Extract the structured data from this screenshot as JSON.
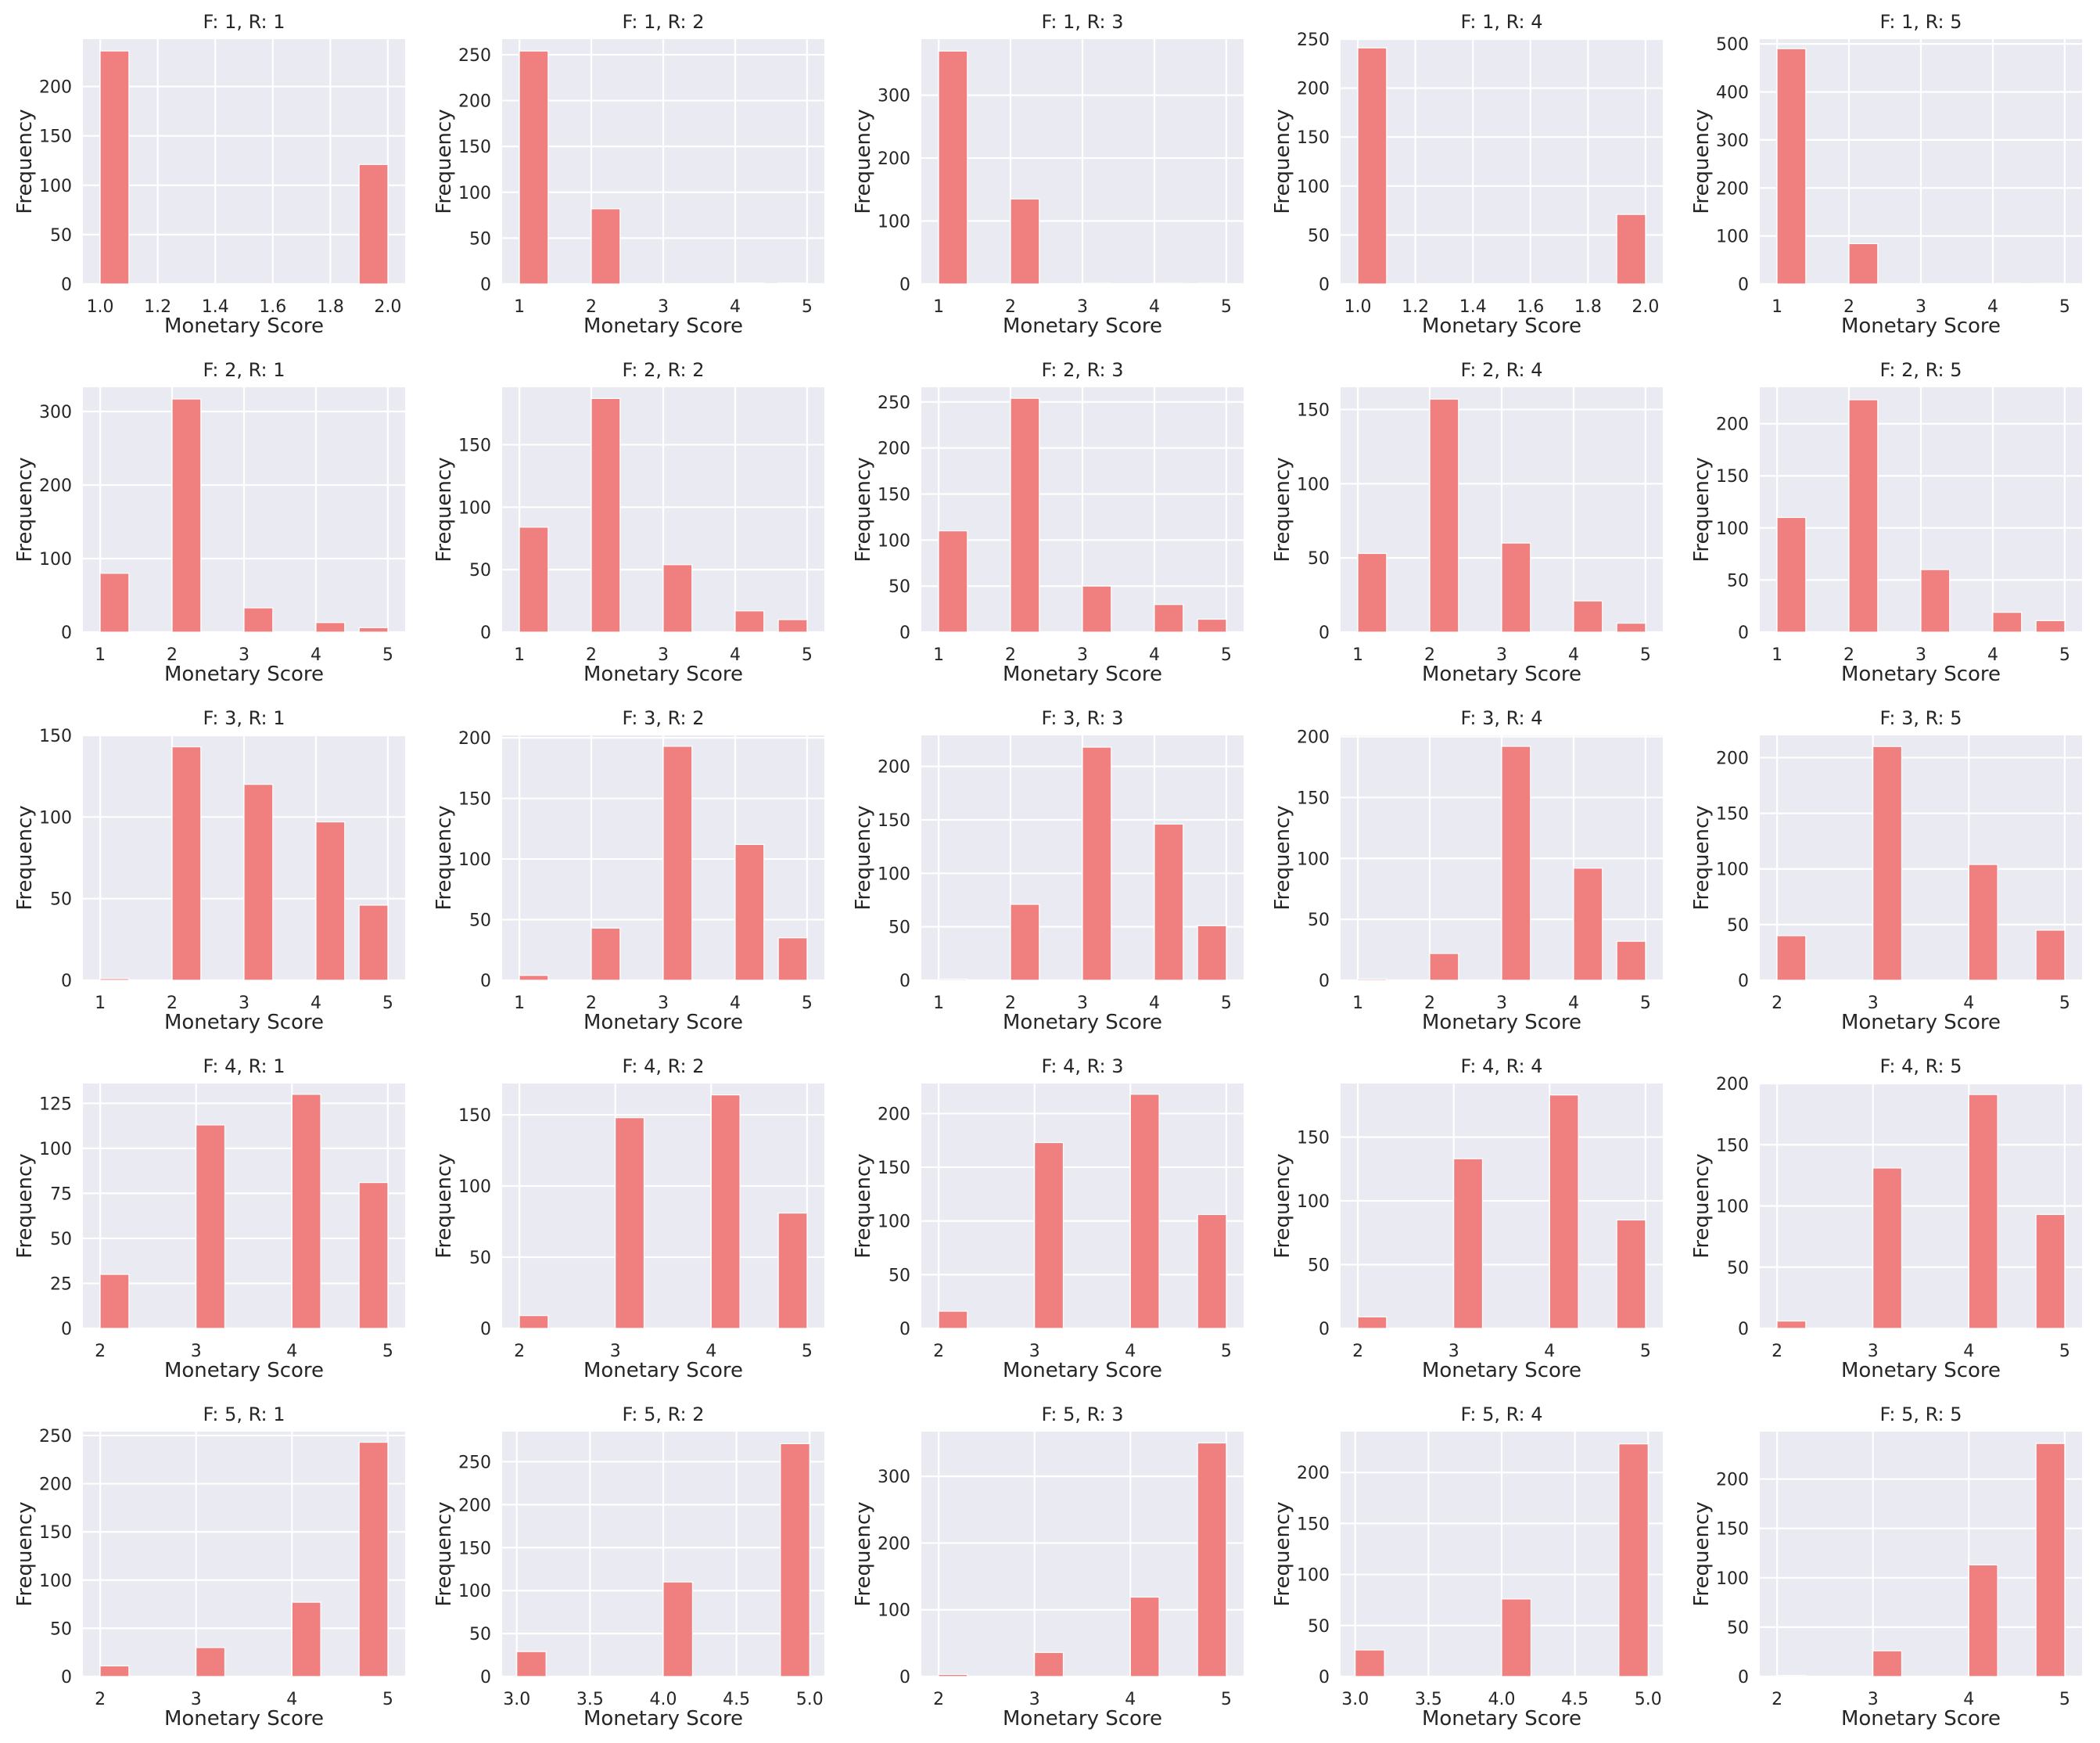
{
  "figure": {
    "rows": 5,
    "cols": 5,
    "bar_color": "#f08080",
    "background_color": "#eaeaf2",
    "grid_color": "#ffffff",
    "style": "seaborn darkgrid"
  },
  "chart_data": [
    {
      "type": "bar",
      "title": "F: 1, R: 1",
      "xlabel": "Monetary Score",
      "ylabel": "Frequency",
      "grid": true,
      "x": [
        1.0,
        2.0
      ],
      "values": [
        236,
        121
      ],
      "bin_width": 0.1,
      "xlim": [
        0.94,
        2.06
      ],
      "ylim": [
        0,
        248
      ],
      "xticks": [
        1.0,
        1.2,
        1.4,
        1.6,
        1.8,
        2.0
      ],
      "xtick_labels": [
        "1.0",
        "1.2",
        "1.4",
        "1.6",
        "1.8",
        "2.0"
      ],
      "yticks": [
        0,
        50,
        100,
        150,
        200
      ],
      "ytick_labels": [
        "0",
        "50",
        "100",
        "150",
        "200"
      ]
    },
    {
      "type": "bar",
      "title": "F: 1, R: 2",
      "xlabel": "Monetary Score",
      "ylabel": "Frequency",
      "grid": true,
      "x": [
        1,
        2,
        4,
        5
      ],
      "values": [
        254,
        82,
        1,
        1
      ],
      "bin_width": 0.4,
      "xlim": [
        0.76,
        5.24
      ],
      "ylim": [
        0,
        267
      ],
      "xticks": [
        1,
        2,
        3,
        4,
        5
      ],
      "xtick_labels": [
        "1",
        "2",
        "3",
        "4",
        "5"
      ],
      "yticks": [
        0,
        50,
        100,
        150,
        200,
        250
      ],
      "ytick_labels": [
        "0",
        "50",
        "100",
        "150",
        "200",
        "250"
      ]
    },
    {
      "type": "bar",
      "title": "F: 1, R: 3",
      "xlabel": "Monetary Score",
      "ylabel": "Frequency",
      "grid": true,
      "x": [
        1,
        2,
        3,
        4,
        5
      ],
      "values": [
        370,
        135,
        1,
        1,
        1
      ],
      "bin_width": 0.4,
      "xlim": [
        0.76,
        5.24
      ],
      "ylim": [
        0,
        389
      ],
      "xticks": [
        1,
        2,
        3,
        4,
        5
      ],
      "xtick_labels": [
        "1",
        "2",
        "3",
        "4",
        "5"
      ],
      "yticks": [
        0,
        100,
        200,
        300
      ],
      "ytick_labels": [
        "0",
        "100",
        "200",
        "300"
      ]
    },
    {
      "type": "bar",
      "title": "F: 1, R: 4",
      "xlabel": "Monetary Score",
      "ylabel": "Frequency",
      "grid": true,
      "x": [
        1.0,
        2.0
      ],
      "values": [
        241,
        71
      ],
      "bin_width": 0.1,
      "xlim": [
        0.94,
        2.06
      ],
      "ylim": [
        0,
        250
      ],
      "xticks": [
        1.0,
        1.2,
        1.4,
        1.6,
        1.8,
        2.0
      ],
      "xtick_labels": [
        "1.0",
        "1.2",
        "1.4",
        "1.6",
        "1.8",
        "2.0"
      ],
      "yticks": [
        0,
        50,
        100,
        150,
        200,
        250
      ],
      "ytick_labels": [
        "0",
        "50",
        "100",
        "150",
        "200",
        "250"
      ]
    },
    {
      "type": "bar",
      "title": "F: 1, R: 5",
      "xlabel": "Monetary Score",
      "ylabel": "Frequency",
      "grid": true,
      "x": [
        1,
        2,
        4,
        5
      ],
      "values": [
        490,
        84,
        1,
        1
      ],
      "bin_width": 0.4,
      "xlim": [
        0.76,
        5.24
      ],
      "ylim": [
        0,
        510
      ],
      "xticks": [
        1,
        2,
        3,
        4,
        5
      ],
      "xtick_labels": [
        "1",
        "2",
        "3",
        "4",
        "5"
      ],
      "yticks": [
        0,
        100,
        200,
        300,
        400,
        500
      ],
      "ytick_labels": [
        "0",
        "100",
        "200",
        "300",
        "400",
        "500"
      ]
    },
    {
      "type": "bar",
      "title": "F: 2, R: 1",
      "xlabel": "Monetary Score",
      "ylabel": "Frequency",
      "grid": true,
      "x": [
        1,
        2,
        3,
        4,
        5
      ],
      "values": [
        80,
        317,
        33,
        13,
        6
      ],
      "bin_width": 0.4,
      "xlim": [
        0.76,
        5.24
      ],
      "ylim": [
        0,
        333
      ],
      "xticks": [
        1,
        2,
        3,
        4,
        5
      ],
      "xtick_labels": [
        "1",
        "2",
        "3",
        "4",
        "5"
      ],
      "yticks": [
        0,
        100,
        200,
        300
      ],
      "ytick_labels": [
        "0",
        "100",
        "200",
        "300"
      ]
    },
    {
      "type": "bar",
      "title": "F: 2, R: 2",
      "xlabel": "Monetary Score",
      "ylabel": "Frequency",
      "grid": true,
      "x": [
        1,
        2,
        3,
        4,
        5
      ],
      "values": [
        84,
        187,
        54,
        17,
        10
      ],
      "bin_width": 0.4,
      "xlim": [
        0.76,
        5.24
      ],
      "ylim": [
        0,
        196
      ],
      "xticks": [
        1,
        2,
        3,
        4,
        5
      ],
      "xtick_labels": [
        "1",
        "2",
        "3",
        "4",
        "5"
      ],
      "yticks": [
        0,
        50,
        100,
        150
      ],
      "ytick_labels": [
        "0",
        "50",
        "100",
        "150"
      ]
    },
    {
      "type": "bar",
      "title": "F: 2, R: 3",
      "xlabel": "Monetary Score",
      "ylabel": "Frequency",
      "grid": true,
      "x": [
        1,
        2,
        3,
        4,
        5
      ],
      "values": [
        110,
        254,
        50,
        30,
        14
      ],
      "bin_width": 0.4,
      "xlim": [
        0.76,
        5.24
      ],
      "ylim": [
        0,
        266
      ],
      "xticks": [
        1,
        2,
        3,
        4,
        5
      ],
      "xtick_labels": [
        "1",
        "2",
        "3",
        "4",
        "5"
      ],
      "yticks": [
        0,
        50,
        100,
        150,
        200,
        250
      ],
      "ytick_labels": [
        "0",
        "50",
        "100",
        "150",
        "200",
        "250"
      ]
    },
    {
      "type": "bar",
      "title": "F: 2, R: 4",
      "xlabel": "Monetary Score",
      "ylabel": "Frequency",
      "grid": true,
      "x": [
        1,
        2,
        3,
        4,
        5
      ],
      "values": [
        53,
        157,
        60,
        21,
        6
      ],
      "bin_width": 0.4,
      "xlim": [
        0.76,
        5.24
      ],
      "ylim": [
        0,
        165
      ],
      "xticks": [
        1,
        2,
        3,
        4,
        5
      ],
      "xtick_labels": [
        "1",
        "2",
        "3",
        "4",
        "5"
      ],
      "yticks": [
        0,
        50,
        100,
        150
      ],
      "ytick_labels": [
        "0",
        "50",
        "100",
        "150"
      ]
    },
    {
      "type": "bar",
      "title": "F: 2, R: 5",
      "xlabel": "Monetary Score",
      "ylabel": "Frequency",
      "grid": true,
      "x": [
        1,
        2,
        3,
        4,
        5
      ],
      "values": [
        110,
        223,
        60,
        19,
        11
      ],
      "bin_width": 0.4,
      "xlim": [
        0.76,
        5.24
      ],
      "ylim": [
        0,
        235
      ],
      "xticks": [
        1,
        2,
        3,
        4,
        5
      ],
      "xtick_labels": [
        "1",
        "2",
        "3",
        "4",
        "5"
      ],
      "yticks": [
        0,
        50,
        100,
        150,
        200
      ],
      "ytick_labels": [
        "0",
        "50",
        "100",
        "150",
        "200"
      ]
    },
    {
      "type": "bar",
      "title": "F: 3, R: 1",
      "xlabel": "Monetary Score",
      "ylabel": "Frequency",
      "grid": true,
      "x": [
        1,
        2,
        3,
        4,
        5
      ],
      "values": [
        1,
        143,
        120,
        97,
        46
      ],
      "bin_width": 0.4,
      "xlim": [
        0.76,
        5.24
      ],
      "ylim": [
        0,
        150
      ],
      "xticks": [
        1,
        2,
        3,
        4,
        5
      ],
      "xtick_labels": [
        "1",
        "2",
        "3",
        "4",
        "5"
      ],
      "yticks": [
        0,
        50,
        100,
        150
      ],
      "ytick_labels": [
        "0",
        "50",
        "100",
        "150"
      ]
    },
    {
      "type": "bar",
      "title": "F: 3, R: 2",
      "xlabel": "Monetary Score",
      "ylabel": "Frequency",
      "grid": true,
      "x": [
        1,
        2,
        3,
        4,
        5
      ],
      "values": [
        4,
        43,
        193,
        112,
        35
      ],
      "bin_width": 0.4,
      "xlim": [
        0.76,
        5.24
      ],
      "ylim": [
        0,
        202
      ],
      "xticks": [
        1,
        2,
        3,
        4,
        5
      ],
      "xtick_labels": [
        "1",
        "2",
        "3",
        "4",
        "5"
      ],
      "yticks": [
        0,
        50,
        100,
        150,
        200
      ],
      "ytick_labels": [
        "0",
        "50",
        "100",
        "150",
        "200"
      ]
    },
    {
      "type": "bar",
      "title": "F: 3, R: 3",
      "xlabel": "Monetary Score",
      "ylabel": "Frequency",
      "grid": true,
      "x": [
        1,
        2,
        3,
        4,
        5
      ],
      "values": [
        1,
        71,
        218,
        146,
        51
      ],
      "bin_width": 0.4,
      "xlim": [
        0.76,
        5.24
      ],
      "ylim": [
        0,
        229
      ],
      "xticks": [
        1,
        2,
        3,
        4,
        5
      ],
      "xtick_labels": [
        "1",
        "2",
        "3",
        "4",
        "5"
      ],
      "yticks": [
        0,
        50,
        100,
        150,
        200
      ],
      "ytick_labels": [
        "0",
        "50",
        "100",
        "150",
        "200"
      ]
    },
    {
      "type": "bar",
      "title": "F: 3, R: 4",
      "xlabel": "Monetary Score",
      "ylabel": "Frequency",
      "grid": true,
      "x": [
        1,
        2,
        3,
        4,
        5
      ],
      "values": [
        1,
        22,
        192,
        92,
        32
      ],
      "bin_width": 0.4,
      "xlim": [
        0.76,
        5.24
      ],
      "ylim": [
        0,
        201
      ],
      "xticks": [
        1,
        2,
        3,
        4,
        5
      ],
      "xtick_labels": [
        "1",
        "2",
        "3",
        "4",
        "5"
      ],
      "yticks": [
        0,
        50,
        100,
        150,
        200
      ],
      "ytick_labels": [
        "0",
        "50",
        "100",
        "150",
        "200"
      ]
    },
    {
      "type": "bar",
      "title": "F: 3, R: 5",
      "xlabel": "Monetary Score",
      "ylabel": "Frequency",
      "grid": true,
      "x": [
        2,
        3,
        4,
        5
      ],
      "values": [
        40,
        210,
        104,
        45
      ],
      "bin_width": 0.3,
      "xlim": [
        1.82,
        5.18
      ],
      "ylim": [
        0,
        220
      ],
      "xticks": [
        2,
        3,
        4,
        5
      ],
      "xtick_labels": [
        "2",
        "3",
        "4",
        "5"
      ],
      "yticks": [
        0,
        50,
        100,
        150,
        200
      ],
      "ytick_labels": [
        "0",
        "50",
        "100",
        "150",
        "200"
      ]
    },
    {
      "type": "bar",
      "title": "F: 4, R: 1",
      "xlabel": "Monetary Score",
      "ylabel": "Frequency",
      "grid": true,
      "x": [
        2,
        3,
        4,
        5
      ],
      "values": [
        30,
        113,
        130,
        81
      ],
      "bin_width": 0.3,
      "xlim": [
        1.82,
        5.18
      ],
      "ylim": [
        0,
        136
      ],
      "xticks": [
        2,
        3,
        4,
        5
      ],
      "xtick_labels": [
        "2",
        "3",
        "4",
        "5"
      ],
      "yticks": [
        0,
        25,
        50,
        75,
        100,
        125
      ],
      "ytick_labels": [
        "0",
        "25",
        "50",
        "75",
        "100",
        "125"
      ]
    },
    {
      "type": "bar",
      "title": "F: 4, R: 2",
      "xlabel": "Monetary Score",
      "ylabel": "Frequency",
      "grid": true,
      "x": [
        2,
        3,
        4,
        5
      ],
      "values": [
        9,
        148,
        164,
        81
      ],
      "bin_width": 0.3,
      "xlim": [
        1.82,
        5.18
      ],
      "ylim": [
        0,
        172
      ],
      "xticks": [
        2,
        3,
        4,
        5
      ],
      "xtick_labels": [
        "2",
        "3",
        "4",
        "5"
      ],
      "yticks": [
        0,
        50,
        100,
        150
      ],
      "ytick_labels": [
        "0",
        "50",
        "100",
        "150"
      ]
    },
    {
      "type": "bar",
      "title": "F: 4, R: 3",
      "xlabel": "Monetary Score",
      "ylabel": "Frequency",
      "grid": true,
      "x": [
        2,
        3,
        4,
        5
      ],
      "values": [
        16,
        173,
        218,
        106
      ],
      "bin_width": 0.3,
      "xlim": [
        1.82,
        5.18
      ],
      "ylim": [
        0,
        228
      ],
      "xticks": [
        2,
        3,
        4,
        5
      ],
      "xtick_labels": [
        "2",
        "3",
        "4",
        "5"
      ],
      "yticks": [
        0,
        50,
        100,
        150,
        200
      ],
      "ytick_labels": [
        "0",
        "50",
        "100",
        "150",
        "200"
      ]
    },
    {
      "type": "bar",
      "title": "F: 4, R: 4",
      "xlabel": "Monetary Score",
      "ylabel": "Frequency",
      "grid": true,
      "x": [
        2,
        3,
        4,
        5
      ],
      "values": [
        9,
        133,
        183,
        85
      ],
      "bin_width": 0.3,
      "xlim": [
        1.82,
        5.18
      ],
      "ylim": [
        0,
        192
      ],
      "xticks": [
        2,
        3,
        4,
        5
      ],
      "xtick_labels": [
        "2",
        "3",
        "4",
        "5"
      ],
      "yticks": [
        0,
        50,
        100,
        150
      ],
      "ytick_labels": [
        "0",
        "50",
        "100",
        "150"
      ]
    },
    {
      "type": "bar",
      "title": "F: 4, R: 5",
      "xlabel": "Monetary Score",
      "ylabel": "Frequency",
      "grid": true,
      "x": [
        2,
        3,
        4,
        5
      ],
      "values": [
        6,
        131,
        191,
        93
      ],
      "bin_width": 0.3,
      "xlim": [
        1.82,
        5.18
      ],
      "ylim": [
        0,
        200
      ],
      "xticks": [
        2,
        3,
        4,
        5
      ],
      "xtick_labels": [
        "2",
        "3",
        "4",
        "5"
      ],
      "yticks": [
        0,
        50,
        100,
        150,
        200
      ],
      "ytick_labels": [
        "0",
        "50",
        "100",
        "150",
        "200"
      ]
    },
    {
      "type": "bar",
      "title": "F: 5, R: 1",
      "xlabel": "Monetary Score",
      "ylabel": "Frequency",
      "grid": true,
      "x": [
        2,
        3,
        4,
        5
      ],
      "values": [
        11,
        30,
        77,
        243
      ],
      "bin_width": 0.3,
      "xlim": [
        1.82,
        5.18
      ],
      "ylim": [
        0,
        254
      ],
      "xticks": [
        2,
        3,
        4,
        5
      ],
      "xtick_labels": [
        "2",
        "3",
        "4",
        "5"
      ],
      "yticks": [
        0,
        50,
        100,
        150,
        200,
        250
      ],
      "ytick_labels": [
        "0",
        "50",
        "100",
        "150",
        "200",
        "250"
      ]
    },
    {
      "type": "bar",
      "title": "F: 5, R: 2",
      "xlabel": "Monetary Score",
      "ylabel": "Frequency",
      "grid": true,
      "x": [
        3.0,
        4.0,
        5.0
      ],
      "values": [
        29,
        110,
        271
      ],
      "bin_width": 0.2,
      "xlim": [
        2.9,
        5.1
      ],
      "ylim": [
        0,
        285
      ],
      "xticks": [
        3.0,
        3.5,
        4.0,
        4.5,
        5.0
      ],
      "xtick_labels": [
        "3.0",
        "3.5",
        "4.0",
        "4.5",
        "5.0"
      ],
      "yticks": [
        0,
        50,
        100,
        150,
        200,
        250
      ],
      "ytick_labels": [
        "0",
        "50",
        "100",
        "150",
        "200",
        "250"
      ]
    },
    {
      "type": "bar",
      "title": "F: 5, R: 3",
      "xlabel": "Monetary Score",
      "ylabel": "Frequency",
      "grid": true,
      "x": [
        2,
        3,
        4,
        5
      ],
      "values": [
        3,
        36,
        119,
        350
      ],
      "bin_width": 0.3,
      "xlim": [
        1.82,
        5.18
      ],
      "ylim": [
        0,
        367
      ],
      "xticks": [
        2,
        3,
        4,
        5
      ],
      "xtick_labels": [
        "2",
        "3",
        "4",
        "5"
      ],
      "yticks": [
        0,
        100,
        200,
        300
      ],
      "ytick_labels": [
        "0",
        "100",
        "200",
        "300"
      ]
    },
    {
      "type": "bar",
      "title": "F: 5, R: 4",
      "xlabel": "Monetary Score",
      "ylabel": "Frequency",
      "grid": true,
      "x": [
        3.0,
        4.0,
        5.0
      ],
      "values": [
        26,
        76,
        228
      ],
      "bin_width": 0.2,
      "xlim": [
        2.9,
        5.1
      ],
      "ylim": [
        0,
        240
      ],
      "xticks": [
        3.0,
        3.5,
        4.0,
        4.5,
        5.0
      ],
      "xtick_labels": [
        "3.0",
        "3.5",
        "4.0",
        "4.5",
        "5.0"
      ],
      "yticks": [
        0,
        50,
        100,
        150,
        200
      ],
      "ytick_labels": [
        "0",
        "50",
        "100",
        "150",
        "200"
      ]
    },
    {
      "type": "bar",
      "title": "F: 5, R: 5",
      "xlabel": "Monetary Score",
      "ylabel": "Frequency",
      "grid": true,
      "x": [
        2,
        3,
        4,
        5
      ],
      "values": [
        1,
        26,
        113,
        236
      ],
      "bin_width": 0.3,
      "xlim": [
        1.82,
        5.18
      ],
      "ylim": [
        0,
        248
      ],
      "xticks": [
        2,
        3,
        4,
        5
      ],
      "xtick_labels": [
        "2",
        "3",
        "4",
        "5"
      ],
      "yticks": [
        0,
        50,
        100,
        150,
        200
      ],
      "ytick_labels": [
        "0",
        "50",
        "100",
        "150",
        "200"
      ]
    }
  ]
}
